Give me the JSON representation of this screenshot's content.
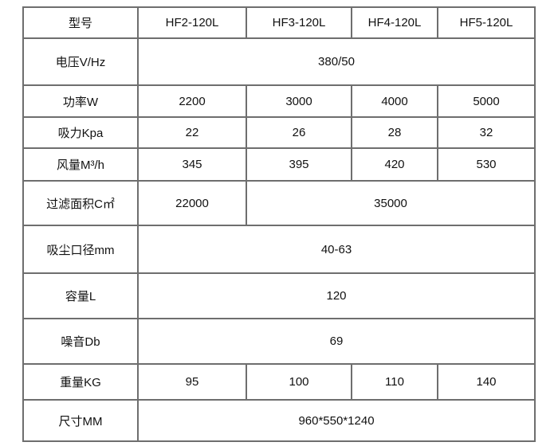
{
  "colors": {
    "background": "#ffffff",
    "border": "#6e6e6e",
    "text": "#111111"
  },
  "table": {
    "description": "product-specification-table",
    "rows": [
      {
        "label": "型号",
        "cells": [
          {
            "text": "HF2-120L",
            "span": 1
          },
          {
            "text": "HF3-120L",
            "span": 1
          },
          {
            "text": "HF4-120L",
            "span": 1
          },
          {
            "text": "HF5-120L",
            "span": 1
          }
        ]
      },
      {
        "label": "电压V/Hz",
        "cells": [
          {
            "text": "380/50",
            "span": 4
          }
        ]
      },
      {
        "label": "功率W",
        "cells": [
          {
            "text": "2200",
            "span": 1
          },
          {
            "text": "3000",
            "span": 1
          },
          {
            "text": "4000",
            "span": 1
          },
          {
            "text": "5000",
            "span": 1
          }
        ]
      },
      {
        "label": "吸力Kpa",
        "cells": [
          {
            "text": "22",
            "span": 1
          },
          {
            "text": "26",
            "span": 1
          },
          {
            "text": "28",
            "span": 1
          },
          {
            "text": "32",
            "span": 1
          }
        ]
      },
      {
        "label": "风量M³/h",
        "cells": [
          {
            "text": "345",
            "span": 1
          },
          {
            "text": "395",
            "span": 1
          },
          {
            "text": "420",
            "span": 1
          },
          {
            "text": "530",
            "span": 1
          }
        ]
      },
      {
        "label": "过滤面积C㎡",
        "cells": [
          {
            "text": "22000",
            "span": 1
          },
          {
            "text": "35000",
            "span": 3
          }
        ]
      },
      {
        "label": "吸尘口径mm",
        "cells": [
          {
            "text": "40-63",
            "span": 4
          }
        ]
      },
      {
        "label": "容量L",
        "cells": [
          {
            "text": "120",
            "span": 4
          }
        ]
      },
      {
        "label": "噪音Db",
        "cells": [
          {
            "text": "69",
            "span": 4
          }
        ]
      },
      {
        "label": "重量KG",
        "cells": [
          {
            "text": "95",
            "span": 1
          },
          {
            "text": "100",
            "span": 1
          },
          {
            "text": "110",
            "span": 1
          },
          {
            "text": "140",
            "span": 1
          }
        ]
      },
      {
        "label": "尺寸MM",
        "cells": [
          {
            "text": "960*550*1240",
            "span": 4
          }
        ]
      }
    ]
  }
}
